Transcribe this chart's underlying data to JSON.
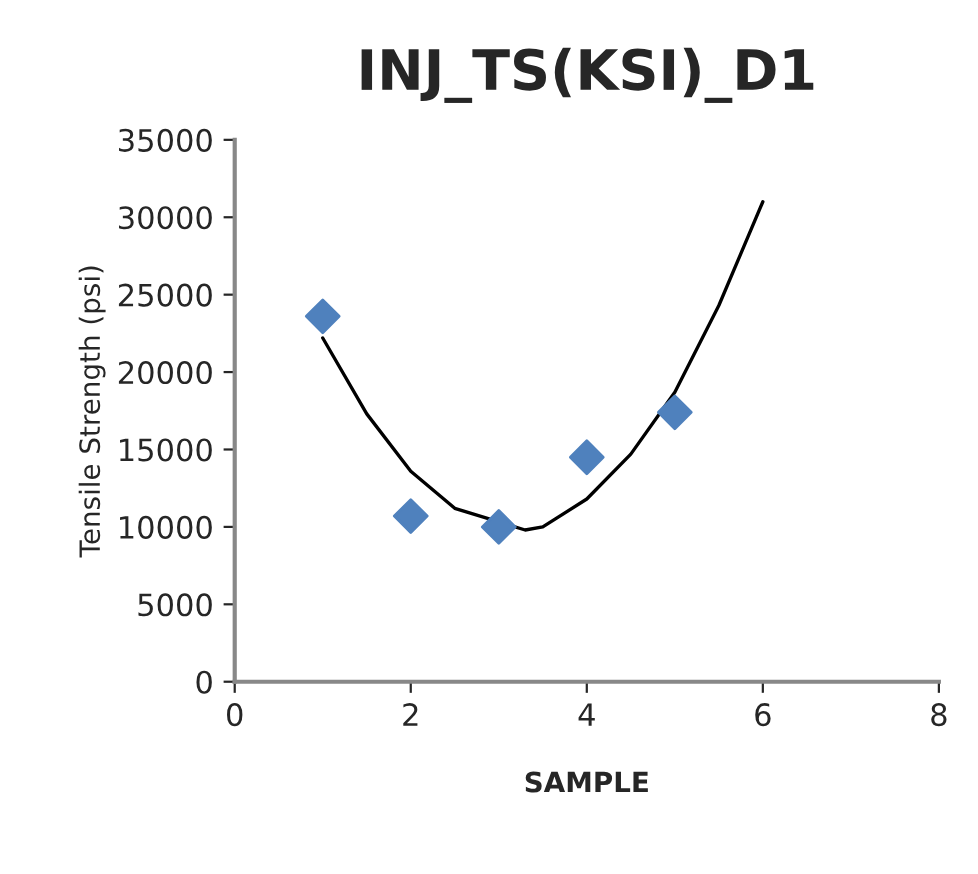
{
  "chart_data": {
    "type": "scatter",
    "title": "INJ_TS(KSI)_D1",
    "xlabel": "SAMPLE",
    "ylabel": "Tensile Strength (psi)",
    "xlim": [
      0,
      8
    ],
    "xticks": [
      0,
      2,
      4,
      6,
      8
    ],
    "ylim": [
      0,
      35000
    ],
    "yticks": [
      0,
      5000,
      10000,
      15000,
      20000,
      25000,
      30000,
      35000
    ],
    "grid": false,
    "legend": false,
    "series": [
      {
        "color": "#4f81bd",
        "marker": "diamond",
        "x": [
          1,
          2,
          3,
          4,
          5
        ],
        "values": [
          23600,
          10700,
          10000,
          14500,
          17400
        ]
      },
      {
        "type": "line",
        "color": "#000000",
        "marker": "none",
        "line_style": "solid",
        "x": [
          1,
          1.5,
          2,
          2.5,
          3.3,
          3.5,
          4,
          4.5,
          5,
          5.5,
          6
        ],
        "values": [
          22200,
          17300,
          13600,
          11200,
          9800,
          10000,
          11800,
          14700,
          18700,
          24300,
          31000
        ]
      }
    ]
  }
}
